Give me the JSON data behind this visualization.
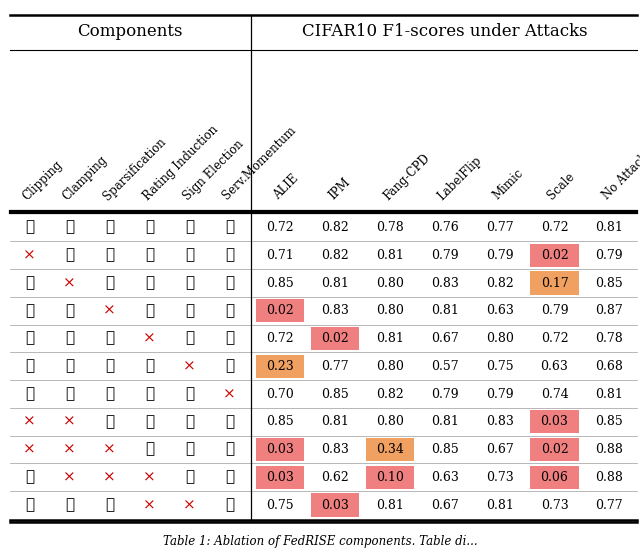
{
  "col_headers_components": [
    "Clipping",
    "Clamping",
    "Sparsification",
    "Rating Induction",
    "Sign Election",
    "Serv.Momentum"
  ],
  "col_headers_attacks": [
    "ALIE",
    "IPM",
    "Fang-CPD",
    "LabelFlip",
    "Mimic",
    "Scale",
    "No Attack"
  ],
  "rows": [
    {
      "checks": [
        1,
        1,
        1,
        1,
        1,
        1
      ],
      "values": [
        0.72,
        0.82,
        0.78,
        0.76,
        0.77,
        0.72,
        0.81
      ]
    },
    {
      "checks": [
        0,
        1,
        1,
        1,
        1,
        1
      ],
      "values": [
        0.71,
        0.82,
        0.81,
        0.79,
        0.79,
        0.02,
        0.79
      ]
    },
    {
      "checks": [
        1,
        0,
        1,
        1,
        1,
        1
      ],
      "values": [
        0.85,
        0.81,
        0.8,
        0.83,
        0.82,
        0.17,
        0.85
      ]
    },
    {
      "checks": [
        1,
        1,
        0,
        1,
        1,
        1
      ],
      "values": [
        0.02,
        0.83,
        0.8,
        0.81,
        0.63,
        0.79,
        0.87
      ]
    },
    {
      "checks": [
        1,
        1,
        1,
        0,
        1,
        1
      ],
      "values": [
        0.72,
        0.02,
        0.81,
        0.67,
        0.8,
        0.72,
        0.78
      ]
    },
    {
      "checks": [
        1,
        1,
        1,
        1,
        0,
        1
      ],
      "values": [
        0.23,
        0.77,
        0.8,
        0.57,
        0.75,
        0.63,
        0.68
      ]
    },
    {
      "checks": [
        1,
        1,
        1,
        1,
        1,
        0
      ],
      "values": [
        0.7,
        0.85,
        0.82,
        0.79,
        0.79,
        0.74,
        0.81
      ]
    },
    {
      "checks": [
        0,
        0,
        1,
        1,
        1,
        1
      ],
      "values": [
        0.85,
        0.81,
        0.8,
        0.81,
        0.83,
        0.03,
        0.85
      ]
    },
    {
      "checks": [
        0,
        0,
        0,
        1,
        1,
        1
      ],
      "values": [
        0.03,
        0.83,
        0.34,
        0.85,
        0.67,
        0.02,
        0.88
      ]
    },
    {
      "checks": [
        1,
        0,
        0,
        0,
        1,
        1
      ],
      "values": [
        0.03,
        0.62,
        0.1,
        0.63,
        0.73,
        0.06,
        0.88
      ]
    },
    {
      "checks": [
        1,
        1,
        1,
        0,
        0,
        1
      ],
      "values": [
        0.75,
        0.03,
        0.81,
        0.67,
        0.81,
        0.73,
        0.77
      ]
    }
  ],
  "highlight_cells": [
    [
      1,
      5,
      "#f08080"
    ],
    [
      2,
      5,
      "#f0a060"
    ],
    [
      3,
      0,
      "#f08080"
    ],
    [
      4,
      1,
      "#f08080"
    ],
    [
      5,
      0,
      "#f0a060"
    ],
    [
      7,
      5,
      "#f08080"
    ],
    [
      8,
      0,
      "#f08080"
    ],
    [
      8,
      2,
      "#f0a060"
    ],
    [
      8,
      5,
      "#f08080"
    ],
    [
      9,
      0,
      "#f08080"
    ],
    [
      9,
      2,
      "#f08080"
    ],
    [
      9,
      5,
      "#f08080"
    ],
    [
      10,
      1,
      "#f08080"
    ]
  ],
  "title_components": "Components",
  "title_attacks": "CIFAR10 F1-scores under Attacks",
  "caption": "Table 1: Ablation of FedRISE components. Table di...",
  "fig_width": 6.4,
  "fig_height": 5.55,
  "dpi": 100
}
